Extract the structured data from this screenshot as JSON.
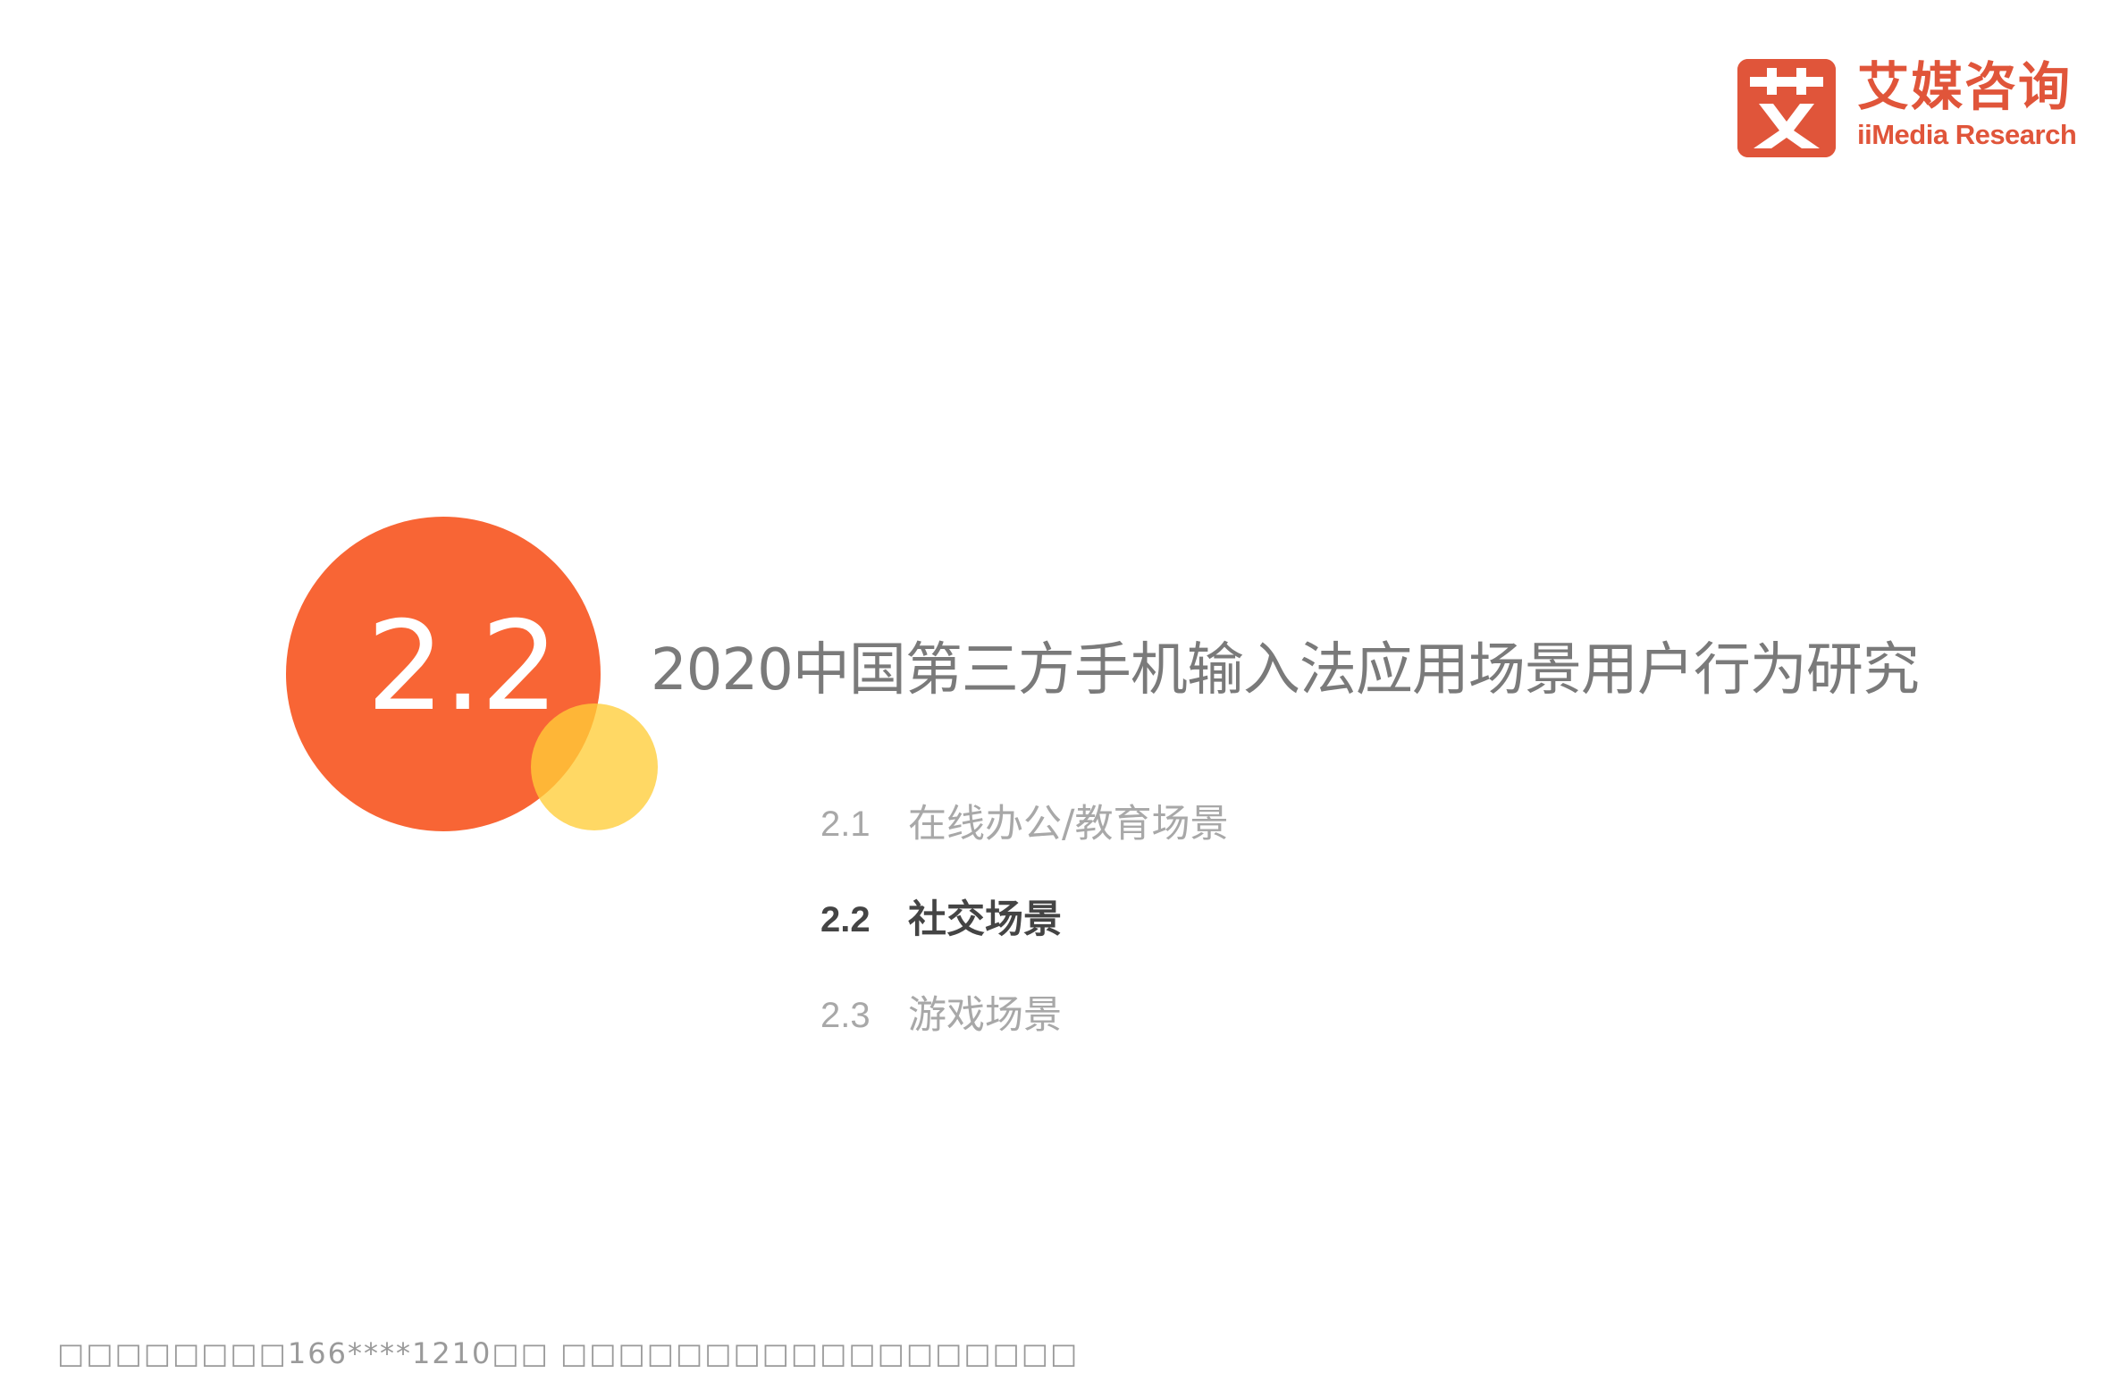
{
  "brand": {
    "name_cn": "艾媒咨询",
    "name_en": "iiMedia Research",
    "mark_char": "艾",
    "colors": {
      "brand": "#e0553a",
      "bubble_main": "#f86535",
      "bubble_accent": "#ffcd39"
    }
  },
  "section": {
    "number": "2.2",
    "title": "2020中国第三方手机输入法应用场景用户行为研究"
  },
  "toc": {
    "items": [
      {
        "num": "2.1",
        "label": "在线办公/教育场景",
        "active": false
      },
      {
        "num": "2.2",
        "label": "社交场景",
        "active": true
      },
      {
        "num": "2.3",
        "label": "游戏场景",
        "active": false
      }
    ]
  },
  "footer": {
    "watermark": "□□□□□□□□166****1210□□ □□□□□□□□□□□□□□□□□□"
  }
}
